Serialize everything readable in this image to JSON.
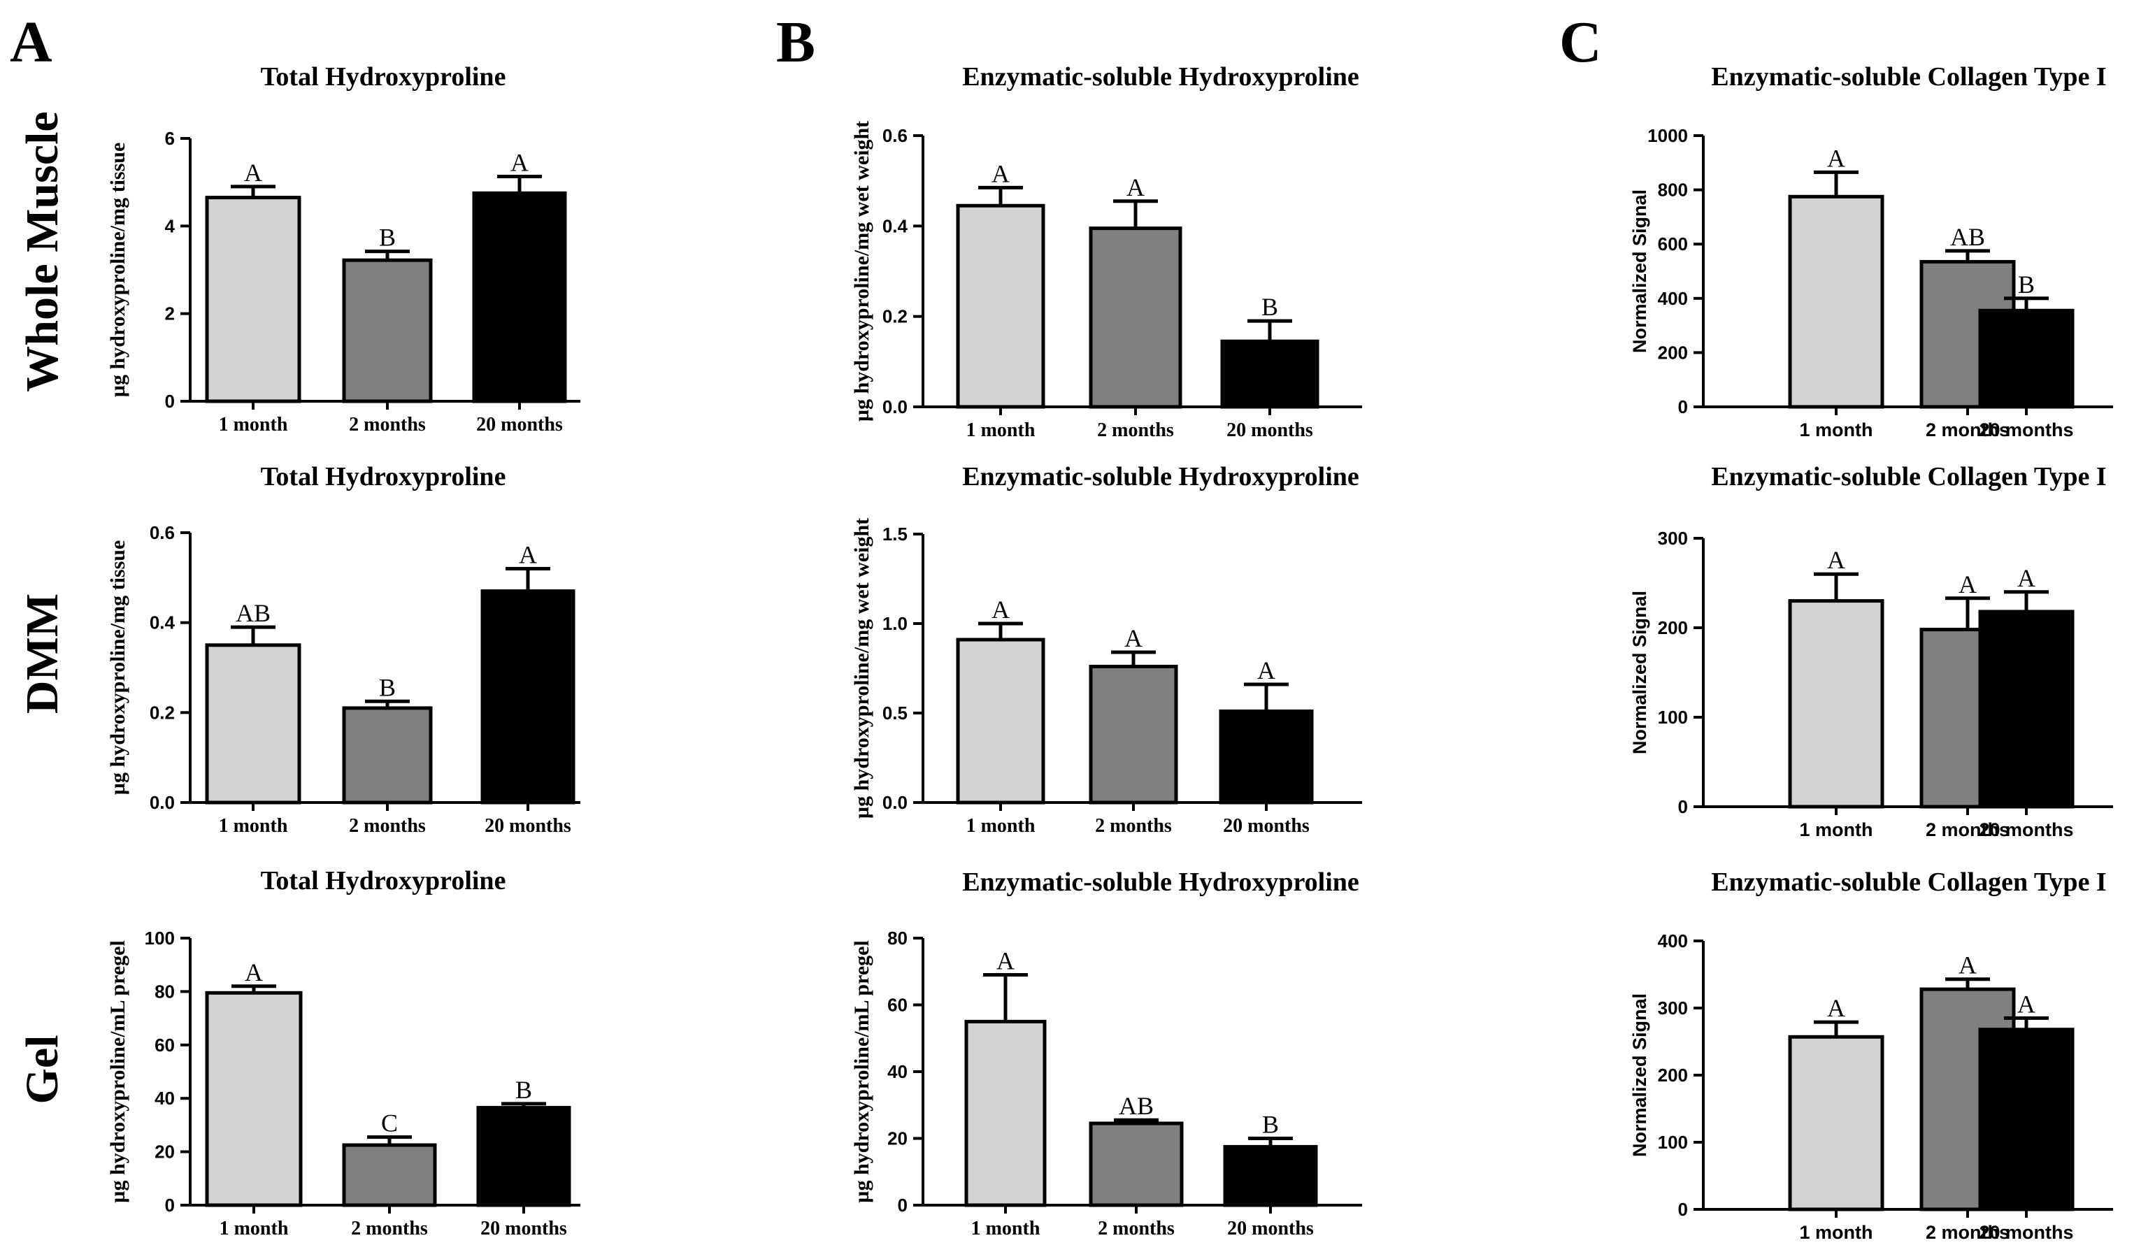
{
  "figure": {
    "column_letters": [
      "A",
      "B",
      "C"
    ],
    "row_labels": [
      "Whole Muscle",
      "DMM",
      "Gel"
    ]
  },
  "colors": {
    "bar1": "#d3d3d3",
    "bar2": "#808080",
    "bar3": "#000000",
    "ink": "#000000"
  },
  "chart_data": [
    {
      "id": "A1",
      "type": "bar",
      "title": "Total Hydroxyproline",
      "ylabel": "µg hydroxyproline/mg tissue",
      "categories": [
        "1 month",
        "2 months",
        "20 months"
      ],
      "values": [
        4.65,
        3.22,
        4.75
      ],
      "errors": [
        0.25,
        0.2,
        0.38
      ],
      "letters": [
        "A",
        "B",
        "A"
      ],
      "ylim": [
        0,
        6
      ],
      "yticks": [
        0,
        2,
        4,
        6
      ]
    },
    {
      "id": "B1",
      "type": "bar",
      "title": "Enzymatic-soluble Hydroxyproline",
      "ylabel": "µg hydroxyproline/mg wet weight",
      "categories": [
        "1 month",
        "2 months",
        "20 months"
      ],
      "values": [
        0.445,
        0.395,
        0.145
      ],
      "errors": [
        0.04,
        0.06,
        0.045
      ],
      "letters": [
        "A",
        "A",
        "B"
      ],
      "ylim": [
        0,
        0.6
      ],
      "yticks": [
        0.0,
        0.2,
        0.4,
        0.6
      ]
    },
    {
      "id": "C1",
      "type": "bar",
      "title": "Enzymatic-soluble Collagen Type I",
      "ylabel": "Normalized Signal",
      "categories": [
        "1 month",
        "2 months",
        "20 months"
      ],
      "values": [
        775,
        535,
        355
      ],
      "errors": [
        90,
        40,
        45
      ],
      "letters": [
        "A",
        "AB",
        "B"
      ],
      "ylim": [
        0,
        1000
      ],
      "yticks": [
        0,
        200,
        400,
        600,
        800,
        1000
      ]
    },
    {
      "id": "A2",
      "type": "bar",
      "title": "Total Hydroxyproline",
      "ylabel": "µg hydroxyproline/mg tissue",
      "categories": [
        "1 month",
        "2 months",
        "20 months"
      ],
      "values": [
        0.35,
        0.21,
        0.47
      ],
      "errors": [
        0.04,
        0.015,
        0.05
      ],
      "letters": [
        "AB",
        "B",
        "A"
      ],
      "ylim": [
        0,
        0.6
      ],
      "yticks": [
        0.0,
        0.2,
        0.4,
        0.6
      ]
    },
    {
      "id": "B2",
      "type": "bar",
      "title": "Enzymatic-soluble Hydroxyproline",
      "ylabel": "µg hydroxyproline/mg wet weight",
      "categories": [
        "1 month",
        "2 months",
        "20 months"
      ],
      "values": [
        0.91,
        0.76,
        0.51
      ],
      "errors": [
        0.09,
        0.08,
        0.15
      ],
      "letters": [
        "A",
        "A",
        "A"
      ],
      "ylim": [
        0,
        1.5
      ],
      "yticks": [
        0.0,
        0.5,
        1.0,
        1.5
      ]
    },
    {
      "id": "C2",
      "type": "bar",
      "title": "Enzymatic-soluble Collagen Type I",
      "ylabel": "Normalized Signal",
      "categories": [
        "1 month",
        "2 months",
        "20 months"
      ],
      "values": [
        230,
        198,
        218
      ],
      "errors": [
        30,
        35,
        22
      ],
      "letters": [
        "A",
        "A",
        "A"
      ],
      "ylim": [
        0,
        300
      ],
      "yticks": [
        0,
        100,
        200,
        300
      ]
    },
    {
      "id": "A3",
      "type": "bar",
      "title": "Total Hydroxyproline",
      "ylabel": "µg hydroxyproline/mL pregel",
      "categories": [
        "1 month",
        "2 months",
        "20 months"
      ],
      "values": [
        79.5,
        22.5,
        36.5
      ],
      "errors": [
        2.5,
        3,
        1.5
      ],
      "letters": [
        "A",
        "C",
        "B"
      ],
      "ylim": [
        0,
        100
      ],
      "yticks": [
        0,
        20,
        40,
        60,
        80,
        100
      ]
    },
    {
      "id": "B3",
      "type": "bar",
      "title": "Enzymatic-soluble Hydroxyproline",
      "ylabel": "µg hydroxyproline/mL pregel",
      "categories": [
        "1 month",
        "2 months",
        "20 months"
      ],
      "values": [
        55,
        24.5,
        17.5
      ],
      "errors": [
        14,
        1,
        2.5
      ],
      "letters": [
        "A",
        "AB",
        "B"
      ],
      "ylim": [
        0,
        80
      ],
      "yticks": [
        0,
        20,
        40,
        60,
        80
      ]
    },
    {
      "id": "C3",
      "type": "bar",
      "title": "Enzymatic-soluble Collagen Type I",
      "ylabel": "Normalized Signal",
      "categories": [
        "1 month",
        "2 months",
        "20 months"
      ],
      "values": [
        257,
        328,
        268
      ],
      "errors": [
        22,
        15,
        17
      ],
      "letters": [
        "A",
        "A",
        "A"
      ],
      "ylim": [
        0,
        400
      ],
      "yticks": [
        0,
        100,
        200,
        300,
        400
      ]
    }
  ]
}
